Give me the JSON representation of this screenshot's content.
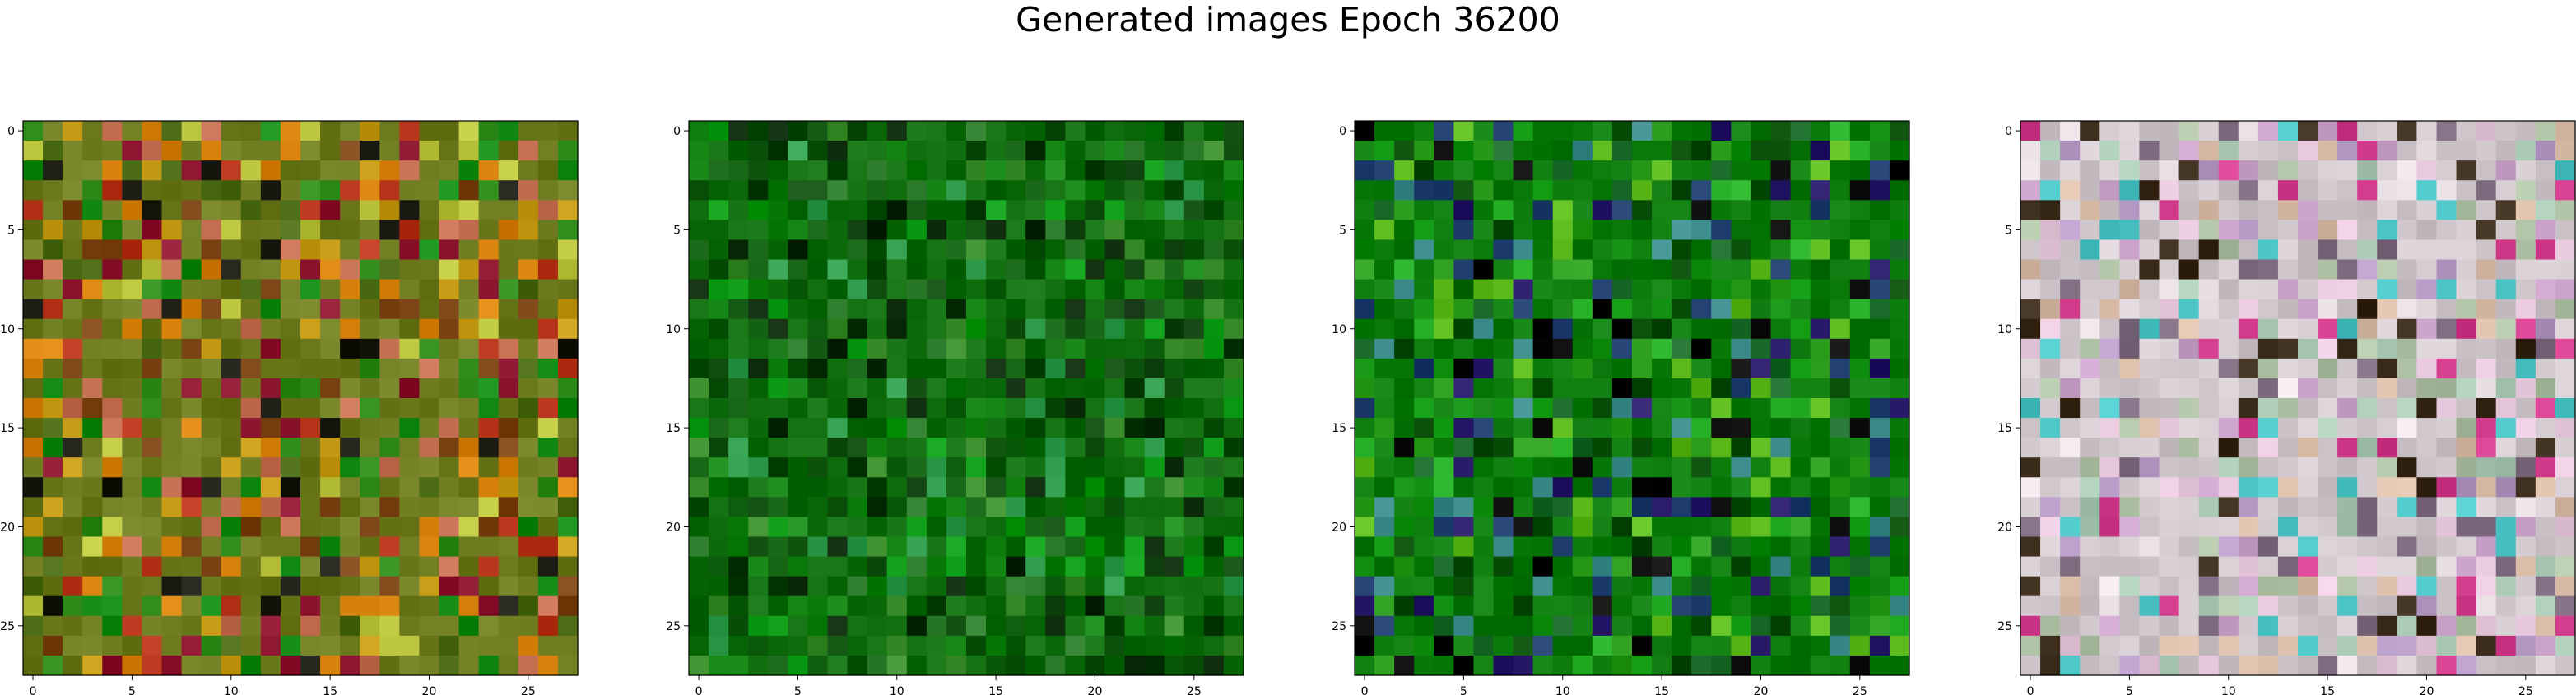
{
  "figure": {
    "title": "Generated images Epoch 36200"
  },
  "chart_data": [
    {
      "type": "heatmap",
      "palette": {
        "base": "#6e7a1e",
        "variants": [
          "#c49a14",
          "#d6800c",
          "#b8361c",
          "#8c1630",
          "#4a6a14",
          "#2e8a18",
          "#b8c23a",
          "#7a4414",
          "#128a14",
          "#c46e52",
          "#1c1c14"
        ]
      },
      "seed": 11,
      "size": [
        28,
        28
      ],
      "x_ticks": [
        "0",
        "5",
        "10",
        "15",
        "20",
        "25"
      ],
      "y_ticks": [
        "0",
        "5",
        "10",
        "15",
        "20",
        "25"
      ]
    },
    {
      "type": "heatmap",
      "palette": {
        "base": "#0e6c0c",
        "variants": [
          "#087a08",
          "#0c5c0c",
          "#1a8a1a",
          "#0a9a14",
          "#063806",
          "#2a7a2a",
          "#2e9c4a",
          "#044a04",
          "#104e10",
          "#3a8c2a",
          "#0a2a0a"
        ]
      },
      "seed": 23,
      "size": [
        28,
        28
      ],
      "x_ticks": [
        "0",
        "5",
        "10",
        "15",
        "20",
        "25"
      ],
      "y_ticks": [
        "0",
        "5",
        "10",
        "15",
        "20",
        "25"
      ]
    },
    {
      "type": "heatmap",
      "palette": {
        "base": "#0a7a0a",
        "variants": [
          "#0c8a0c",
          "#067006",
          "#2a9a1a",
          "#044a04",
          "#1a6a2a",
          "#22aa22",
          "#1c3a6a",
          "#2a1a6a",
          "#5ab81a",
          "#3a8a8a",
          "#0a0a0a"
        ]
      },
      "seed": 37,
      "size": [
        28,
        28
      ],
      "x_ticks": [
        "0",
        "5",
        "10",
        "15",
        "20",
        "25"
      ],
      "y_ticks": [
        "0",
        "5",
        "10",
        "15",
        "20",
        "25"
      ]
    },
    {
      "type": "heatmap",
      "palette": {
        "base": "#cfc6cc",
        "variants": [
          "#e6dde2",
          "#c8a0c8",
          "#a8c8b4",
          "#d8bca8",
          "#b498c4",
          "#aec0a4",
          "#e8c8dc",
          "#7e6a7e",
          "#4ac4c4",
          "#d23a8c",
          "#3a2a1a"
        ]
      },
      "seed": 53,
      "size": [
        28,
        28
      ],
      "x_ticks": [
        "0",
        "5",
        "10",
        "15",
        "20",
        "25"
      ],
      "y_ticks": [
        "0",
        "5",
        "10",
        "15",
        "20",
        "25"
      ]
    }
  ]
}
